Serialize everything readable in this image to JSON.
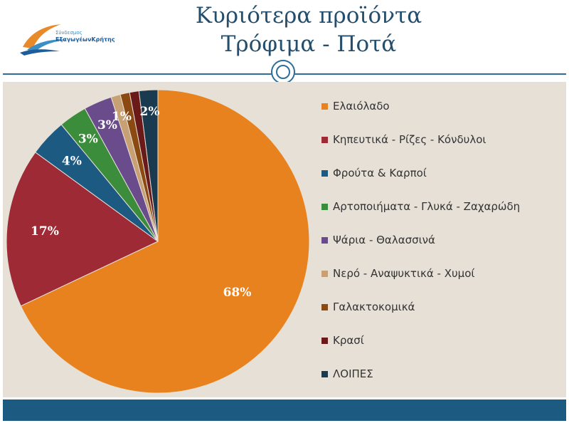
{
  "header": {
    "title_line1": "Κυριότερα προϊόντα",
    "title_line2": "Τρόφιμα - Ποτά",
    "logo_line1": "Σύνδεσμος",
    "logo_line2": "ΕξαγωγέωνΚρήτης"
  },
  "colors": {
    "title": "#244e6b",
    "accent": "#2e6e98",
    "content_bg": "#e6e0d7",
    "footer": "#1d5a82"
  },
  "chart_data": {
    "type": "pie",
    "title": "",
    "slices": [
      {
        "label": "Ελαιόλαδο",
        "value": 68,
        "data_label": "68%",
        "color": "#e8821e"
      },
      {
        "label": "Κηπευτικά - Ρίζες - Κόνδυλοι",
        "value": 17,
        "data_label": "17%",
        "color": "#9e2a35"
      },
      {
        "label": "Φρούτα & Καρποί",
        "value": 4,
        "data_label": "4%",
        "color": "#1d5a82"
      },
      {
        "label": "Αρτοποιήματα - Γλυκά - Ζαχαρώδη",
        "value": 3,
        "data_label": "3%",
        "color": "#3b8c3b"
      },
      {
        "label": "Ψάρια - Θαλασσινά",
        "value": 3,
        "data_label": "3%",
        "color": "#6a4b8c"
      },
      {
        "label": "Νερό - Αναψυκτικά - Χυμοί",
        "value": 1,
        "data_label": "1%",
        "color": "#c7a173"
      },
      {
        "label": "Γαλακτοκομικά",
        "value": 1,
        "data_label": "",
        "color": "#8a4a12"
      },
      {
        "label": "Κρασί",
        "value": 1,
        "data_label": "",
        "color": "#6b1a1a"
      },
      {
        "label": "ΛΟΙΠΕΣ",
        "value": 2,
        "data_label": "2%",
        "color": "#1a3a4f"
      }
    ],
    "legend_position": "right"
  }
}
